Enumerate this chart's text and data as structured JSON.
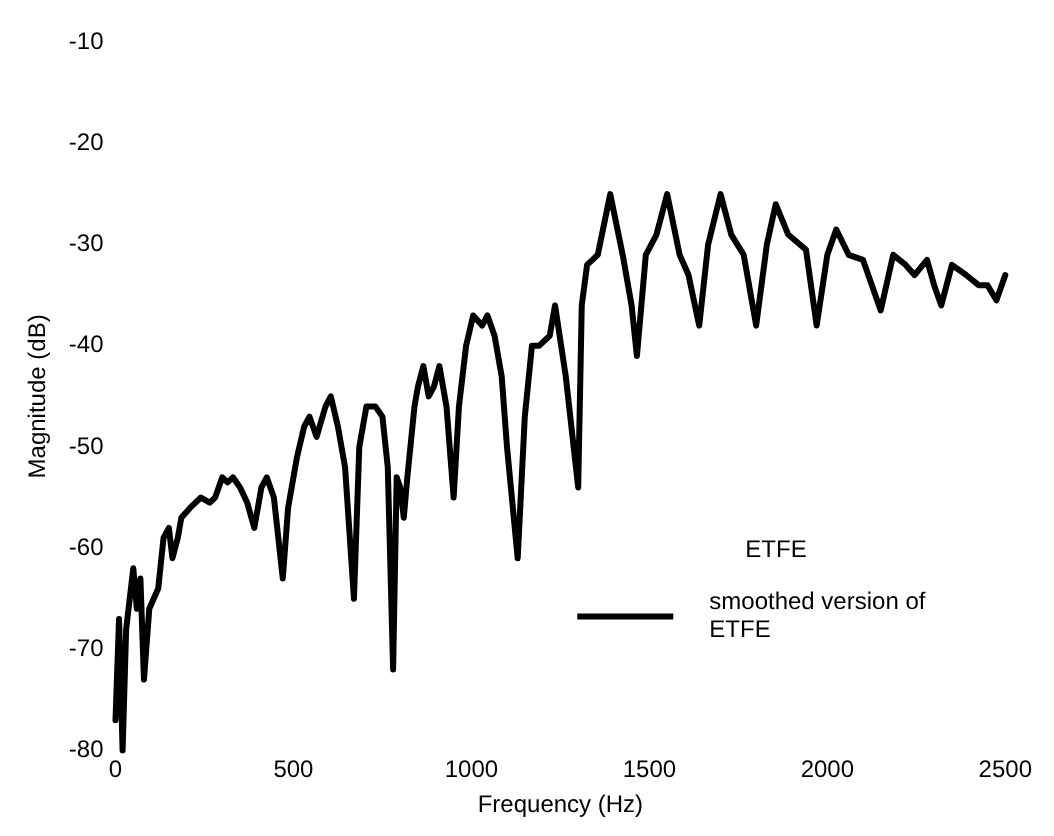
{
  "chart_data": {
    "type": "line",
    "xlabel": "Frequency (Hz)",
    "ylabel": "Magnitude (dB)",
    "legend_title": "ETFE",
    "legend": "bottom right",
    "grid": false,
    "marker": "none",
    "line_style": "solid",
    "xlim": [
      0,
      2500
    ],
    "xticks": [
      0,
      500,
      1000,
      1500,
      2000,
      2500
    ],
    "ylim": [
      -80,
      -10
    ],
    "yticks": [
      -80,
      -70,
      -60,
      -50,
      -40,
      -30,
      -20,
      -10
    ],
    "x": [
      0,
      10,
      20,
      30,
      50,
      60,
      70,
      80,
      95,
      120,
      135,
      150,
      160,
      175,
      185,
      210,
      240,
      265,
      280,
      300,
      315,
      330,
      350,
      370,
      390,
      410,
      425,
      445,
      470,
      485,
      510,
      530,
      545,
      565,
      590,
      605,
      625,
      645,
      670,
      685,
      705,
      730,
      750,
      765,
      780,
      790,
      800,
      810,
      820,
      840,
      850,
      865,
      880,
      895,
      910,
      930,
      950,
      965,
      985,
      1005,
      1030,
      1045,
      1065,
      1085,
      1100,
      1130,
      1150,
      1170,
      1190,
      1220,
      1235,
      1265,
      1300,
      1310,
      1325,
      1355,
      1390,
      1425,
      1450,
      1465,
      1490,
      1520,
      1550,
      1585,
      1610,
      1640,
      1665,
      1700,
      1730,
      1765,
      1800,
      1830,
      1855,
      1890,
      1940,
      1970,
      2000,
      2025,
      2060,
      2100,
      2150,
      2185,
      2220,
      2245,
      2280,
      2300,
      2320,
      2350,
      2390,
      2425,
      2450,
      2475,
      2500
    ],
    "series": [
      {
        "name": "smoothed version of ETFE",
        "color": "#000000",
        "values": [
          -77,
          -67,
          -80,
          -68,
          -62,
          -66,
          -63,
          -73,
          -66,
          -64,
          -59,
          -58,
          -61,
          -59,
          -57,
          -56,
          -55,
          -55.5,
          -55,
          -53,
          -53.5,
          -53,
          -54,
          -55.5,
          -58,
          -54,
          -53,
          -55,
          -63,
          -56,
          -51,
          -48,
          -47,
          -49,
          -46,
          -45,
          -48,
          -52,
          -65,
          -50,
          -46,
          -46,
          -47,
          -52,
          -72,
          -53,
          -54,
          -57,
          -53,
          -46,
          -44,
          -42,
          -45,
          -44,
          -42,
          -46,
          -55,
          -46,
          -40,
          -37,
          -38,
          -37,
          -39,
          -43,
          -50,
          -61,
          -47,
          -40,
          -40,
          -39,
          -36,
          -43,
          -54,
          -36,
          -32,
          -31,
          -25,
          -31,
          -36,
          -41,
          -31,
          -29,
          -25,
          -31,
          -33,
          -38,
          -30,
          -25,
          -29,
          -31,
          -38,
          -30,
          -26,
          -29,
          -30.5,
          -38,
          -31,
          -28.5,
          -31,
          -31.5,
          -36.5,
          -31,
          -32,
          -33,
          -31.5,
          -34,
          -36,
          -32,
          -33,
          -34,
          -34,
          -35.5,
          -33
        ]
      }
    ]
  }
}
